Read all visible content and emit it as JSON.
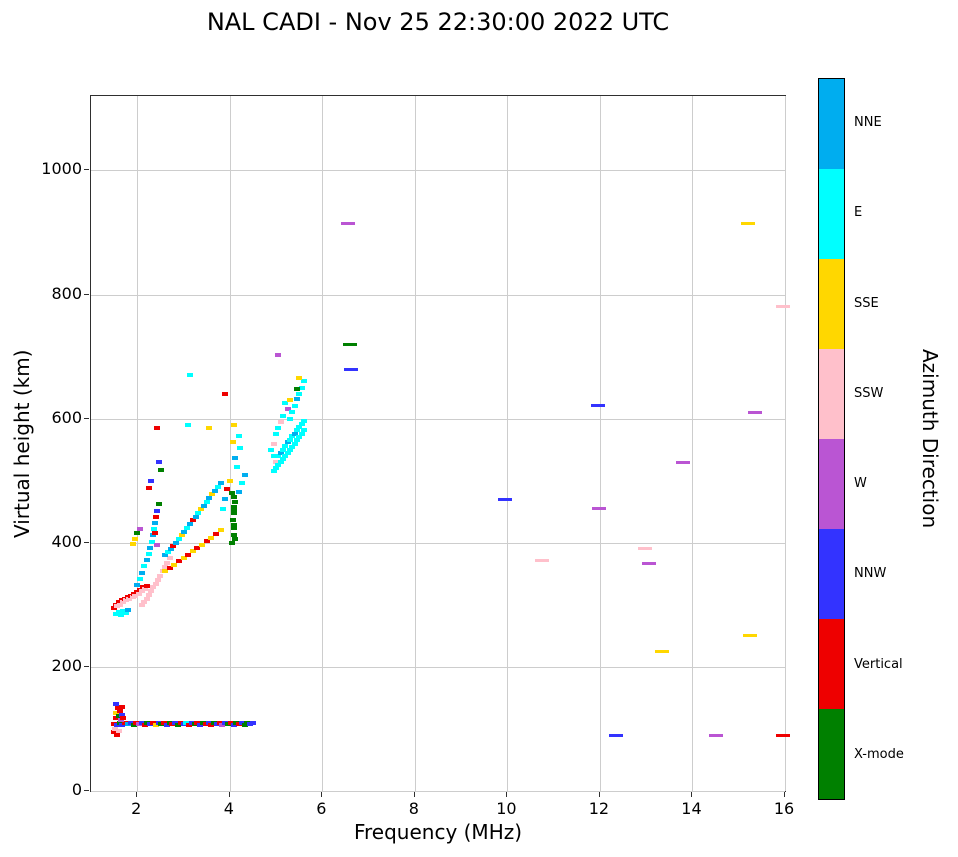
{
  "chart_data": {
    "type": "scatter",
    "title": "NAL CADI - Nov 25 22:30:00 2022 UTC",
    "xlabel": "Frequency (MHz)",
    "ylabel": "Virtual height (km)",
    "xlim": [
      1,
      16
    ],
    "ylim": [
      0,
      1120
    ],
    "xticks": [
      2,
      4,
      6,
      8,
      10,
      12,
      14,
      16
    ],
    "yticks": [
      0,
      200,
      400,
      600,
      800,
      1000
    ],
    "grid": true,
    "grid_color": "#cdcdcd",
    "colorbar": {
      "title": "Azimuth Direction",
      "categories": [
        {
          "label": "NNE",
          "color": "#00ADEF"
        },
        {
          "label": "E",
          "color": "#00FFFF"
        },
        {
          "label": "SSE",
          "color": "#FFD700"
        },
        {
          "label": "SSW",
          "color": "#FFC0CB"
        },
        {
          "label": "W",
          "color": "#BA55D3"
        },
        {
          "label": "NNW",
          "color": "#3333FF"
        },
        {
          "label": "Vertical",
          "color": "#EE0000"
        },
        {
          "label": "X-mode",
          "color": "#008000"
        }
      ]
    },
    "point_format": "[frequency_MHz, virtual_height_km, direction_index_into_colorbar_categories, wide_dash_flag_optional]",
    "points": [
      [
        1.5,
        108,
        6
      ],
      [
        1.56,
        106,
        5
      ],
      [
        1.62,
        110,
        7
      ],
      [
        1.68,
        107,
        5
      ],
      [
        1.74,
        109,
        6
      ],
      [
        1.8,
        108,
        0
      ],
      [
        1.86,
        110,
        5
      ],
      [
        1.92,
        107,
        7
      ],
      [
        1.98,
        109,
        6
      ],
      [
        2.04,
        108,
        4
      ],
      [
        2.1,
        110,
        5
      ],
      [
        2.16,
        107,
        6
      ],
      [
        2.22,
        109,
        7
      ],
      [
        2.28,
        108,
        5
      ],
      [
        2.34,
        110,
        6
      ],
      [
        2.4,
        107,
        2
      ],
      [
        2.46,
        109,
        5
      ],
      [
        2.52,
        108,
        7
      ],
      [
        2.58,
        110,
        6
      ],
      [
        2.64,
        107,
        5
      ],
      [
        2.7,
        109,
        7
      ],
      [
        2.76,
        108,
        6
      ],
      [
        2.82,
        110,
        5
      ],
      [
        2.88,
        107,
        7
      ],
      [
        2.94,
        109,
        6
      ],
      [
        3.0,
        108,
        5
      ],
      [
        3.06,
        110,
        1
      ],
      [
        3.12,
        107,
        6
      ],
      [
        3.18,
        109,
        5
      ],
      [
        3.24,
        108,
        7
      ],
      [
        3.3,
        110,
        6
      ],
      [
        3.36,
        107,
        5
      ],
      [
        3.42,
        109,
        7
      ],
      [
        3.48,
        108,
        6
      ],
      [
        3.54,
        110,
        5
      ],
      [
        3.6,
        107,
        6
      ],
      [
        3.66,
        109,
        7
      ],
      [
        3.72,
        108,
        5
      ],
      [
        3.78,
        110,
        6
      ],
      [
        3.84,
        107,
        4
      ],
      [
        3.9,
        109,
        5
      ],
      [
        3.96,
        108,
        7
      ],
      [
        4.02,
        110,
        6
      ],
      [
        4.08,
        107,
        5
      ],
      [
        4.14,
        109,
        7
      ],
      [
        4.2,
        108,
        6
      ],
      [
        4.26,
        110,
        5
      ],
      [
        4.32,
        107,
        7
      ],
      [
        4.38,
        109,
        7
      ],
      [
        4.44,
        108,
        5
      ],
      [
        4.5,
        110,
        5
      ],
      [
        1.5,
        95,
        6
      ],
      [
        1.52,
        100,
        3
      ],
      [
        1.54,
        118,
        6
      ],
      [
        1.55,
        126,
        2
      ],
      [
        1.58,
        133,
        6
      ],
      [
        1.6,
        96,
        3
      ],
      [
        1.6,
        121,
        7
      ],
      [
        1.62,
        129,
        6
      ],
      [
        1.65,
        115,
        4
      ],
      [
        1.66,
        136,
        6
      ],
      [
        1.68,
        123,
        5
      ],
      [
        1.7,
        118,
        6
      ],
      [
        1.53,
        140,
        5
      ],
      [
        1.57,
        90,
        6
      ],
      [
        1.5,
        295,
        6
      ],
      [
        1.53,
        300,
        6
      ],
      [
        1.56,
        298,
        3
      ],
      [
        1.6,
        304,
        6
      ],
      [
        1.63,
        300,
        3
      ],
      [
        1.66,
        308,
        6
      ],
      [
        1.7,
        305,
        3
      ],
      [
        1.73,
        310,
        6
      ],
      [
        1.76,
        308,
        3
      ],
      [
        1.8,
        312,
        6
      ],
      [
        1.83,
        310,
        3
      ],
      [
        1.86,
        315,
        6
      ],
      [
        1.9,
        312,
        3
      ],
      [
        1.93,
        318,
        6
      ],
      [
        1.96,
        315,
        3
      ],
      [
        2.0,
        320,
        6
      ],
      [
        2.03,
        318,
        3
      ],
      [
        2.06,
        324,
        6
      ],
      [
        2.1,
        322,
        3
      ],
      [
        2.13,
        328,
        6
      ],
      [
        2.16,
        325,
        3
      ],
      [
        2.2,
        330,
        6
      ],
      [
        1.55,
        285,
        1
      ],
      [
        1.6,
        288,
        1
      ],
      [
        1.65,
        283,
        1
      ],
      [
        1.7,
        290,
        1
      ],
      [
        1.75,
        287,
        1
      ],
      [
        1.8,
        292,
        0
      ],
      [
        2.1,
        300,
        3
      ],
      [
        2.15,
        305,
        3
      ],
      [
        2.2,
        310,
        3
      ],
      [
        2.25,
        316,
        3
      ],
      [
        2.3,
        322,
        3
      ],
      [
        2.35,
        328,
        3
      ],
      [
        2.4,
        334,
        3
      ],
      [
        2.45,
        340,
        3
      ],
      [
        2.5,
        347,
        3
      ],
      [
        2.55,
        354,
        3
      ],
      [
        2.6,
        361,
        3
      ],
      [
        2.65,
        368,
        3
      ],
      [
        2.7,
        376,
        3
      ],
      [
        2.0,
        332,
        0
      ],
      [
        2.05,
        342,
        1
      ],
      [
        2.1,
        352,
        0
      ],
      [
        2.15,
        362,
        1
      ],
      [
        2.2,
        372,
        0
      ],
      [
        2.25,
        382,
        1
      ],
      [
        2.28,
        392,
        0
      ],
      [
        2.31,
        402,
        1
      ],
      [
        2.33,
        412,
        0
      ],
      [
        2.36,
        422,
        1
      ],
      [
        2.38,
        432,
        0
      ],
      [
        2.4,
        442,
        6
      ],
      [
        2.43,
        452,
        5
      ],
      [
        2.46,
        462,
        7
      ],
      [
        2.38,
        416,
        6
      ],
      [
        2.42,
        396,
        4
      ],
      [
        1.9,
        398,
        2
      ],
      [
        1.95,
        406,
        2
      ],
      [
        2.0,
        415,
        7
      ],
      [
        2.05,
        422,
        4
      ],
      [
        2.42,
        585,
        6
      ],
      [
        2.46,
        530,
        5
      ],
      [
        2.52,
        518,
        7
      ],
      [
        2.3,
        500,
        5
      ],
      [
        2.26,
        488,
        6
      ],
      [
        2.6,
        380,
        0
      ],
      [
        2.66,
        385,
        1
      ],
      [
        2.72,
        390,
        0
      ],
      [
        2.78,
        395,
        6
      ],
      [
        2.84,
        400,
        0
      ],
      [
        2.9,
        406,
        1
      ],
      [
        2.96,
        412,
        2
      ],
      [
        3.02,
        418,
        0
      ],
      [
        3.08,
        424,
        1
      ],
      [
        3.14,
        430,
        0
      ],
      [
        3.2,
        436,
        6
      ],
      [
        3.26,
        442,
        0
      ],
      [
        3.32,
        448,
        1
      ],
      [
        3.38,
        454,
        2
      ],
      [
        3.44,
        460,
        0
      ],
      [
        3.5,
        466,
        1
      ],
      [
        3.56,
        472,
        0
      ],
      [
        3.62,
        478,
        2
      ],
      [
        3.68,
        484,
        0
      ],
      [
        3.74,
        490,
        1
      ],
      [
        3.8,
        496,
        0
      ],
      [
        2.6,
        355,
        2
      ],
      [
        2.7,
        360,
        6
      ],
      [
        2.8,
        365,
        2
      ],
      [
        2.9,
        370,
        6
      ],
      [
        3.0,
        376,
        2
      ],
      [
        3.1,
        381,
        6
      ],
      [
        3.2,
        386,
        2
      ],
      [
        3.3,
        392,
        6
      ],
      [
        3.4,
        397,
        2
      ],
      [
        3.5,
        403,
        6
      ],
      [
        3.6,
        408,
        2
      ],
      [
        3.7,
        414,
        6
      ],
      [
        3.8,
        420,
        2
      ],
      [
        4.05,
        400,
        7
      ],
      [
        4.08,
        412,
        7
      ],
      [
        4.1,
        424,
        7
      ],
      [
        4.06,
        436,
        7
      ],
      [
        4.1,
        448,
        7
      ],
      [
        4.08,
        458,
        7
      ],
      [
        4.12,
        466,
        7
      ],
      [
        4.1,
        474,
        7
      ],
      [
        4.05,
        480,
        7
      ],
      [
        4.12,
        406,
        7
      ],
      [
        4.08,
        428,
        7
      ],
      [
        4.1,
        452,
        7
      ],
      [
        3.85,
        455,
        1
      ],
      [
        3.9,
        470,
        0
      ],
      [
        3.95,
        486,
        6
      ],
      [
        4.0,
        500,
        2
      ],
      [
        4.2,
        482,
        0
      ],
      [
        4.26,
        496,
        1
      ],
      [
        4.32,
        510,
        0
      ],
      [
        4.16,
        522,
        1
      ],
      [
        4.12,
        536,
        0
      ],
      [
        4.22,
        552,
        1
      ],
      [
        4.06,
        562,
        2
      ],
      [
        4.2,
        572,
        1
      ],
      [
        3.55,
        585,
        2
      ],
      [
        4.1,
        590,
        2
      ],
      [
        3.9,
        640,
        6
      ],
      [
        3.15,
        670,
        1
      ],
      [
        3.1,
        590,
        1
      ],
      [
        4.9,
        550,
        1
      ],
      [
        4.95,
        515,
        1
      ],
      [
        4.95,
        540,
        1
      ],
      [
        4.95,
        560,
        3
      ],
      [
        5.0,
        520,
        1
      ],
      [
        5.0,
        530,
        3
      ],
      [
        5.0,
        575,
        1
      ],
      [
        5.05,
        525,
        1
      ],
      [
        5.05,
        540,
        1
      ],
      [
        5.05,
        585,
        1
      ],
      [
        5.1,
        530,
        1
      ],
      [
        5.1,
        545,
        0
      ],
      [
        5.1,
        595,
        3
      ],
      [
        5.15,
        535,
        1
      ],
      [
        5.15,
        550,
        1
      ],
      [
        5.15,
        605,
        1
      ],
      [
        5.2,
        540,
        1
      ],
      [
        5.2,
        556,
        1
      ],
      [
        5.2,
        625,
        1
      ],
      [
        5.25,
        545,
        1
      ],
      [
        5.25,
        562,
        0
      ],
      [
        5.25,
        615,
        4
      ],
      [
        5.3,
        550,
        1
      ],
      [
        5.3,
        566,
        1
      ],
      [
        5.3,
        600,
        1
      ],
      [
        5.3,
        630,
        2
      ],
      [
        5.35,
        555,
        1
      ],
      [
        5.35,
        572,
        1
      ],
      [
        5.35,
        610,
        1
      ],
      [
        5.4,
        560,
        1
      ],
      [
        5.4,
        576,
        0
      ],
      [
        5.4,
        620,
        1
      ],
      [
        5.45,
        565,
        1
      ],
      [
        5.45,
        582,
        1
      ],
      [
        5.45,
        632,
        0
      ],
      [
        5.5,
        570,
        1
      ],
      [
        5.5,
        586,
        1
      ],
      [
        5.5,
        640,
        1
      ],
      [
        5.55,
        576,
        1
      ],
      [
        5.55,
        592,
        1
      ],
      [
        5.55,
        650,
        1
      ],
      [
        5.6,
        582,
        1
      ],
      [
        5.6,
        596,
        1
      ],
      [
        5.6,
        660,
        1
      ],
      [
        5.5,
        665,
        2
      ],
      [
        5.05,
        703,
        4
      ],
      [
        5.45,
        648,
        7
      ],
      [
        6.55,
        915,
        4,
        1
      ],
      [
        6.6,
        720,
        7,
        1
      ],
      [
        6.62,
        680,
        5,
        1
      ],
      [
        9.95,
        470,
        5,
        1
      ],
      [
        10.75,
        372,
        3,
        1
      ],
      [
        11.95,
        622,
        5,
        1
      ],
      [
        11.97,
        455,
        4,
        1
      ],
      [
        12.35,
        90,
        5,
        1
      ],
      [
        12.98,
        390,
        3,
        1
      ],
      [
        13.05,
        367,
        4,
        1
      ],
      [
        13.35,
        225,
        2,
        1
      ],
      [
        13.8,
        530,
        4,
        1
      ],
      [
        14.5,
        90,
        4,
        1
      ],
      [
        15.2,
        915,
        2,
        1
      ],
      [
        15.25,
        250,
        2,
        1
      ],
      [
        15.35,
        610,
        4,
        1
      ],
      [
        15.95,
        780,
        3,
        1
      ],
      [
        15.95,
        90,
        6,
        1
      ]
    ]
  }
}
